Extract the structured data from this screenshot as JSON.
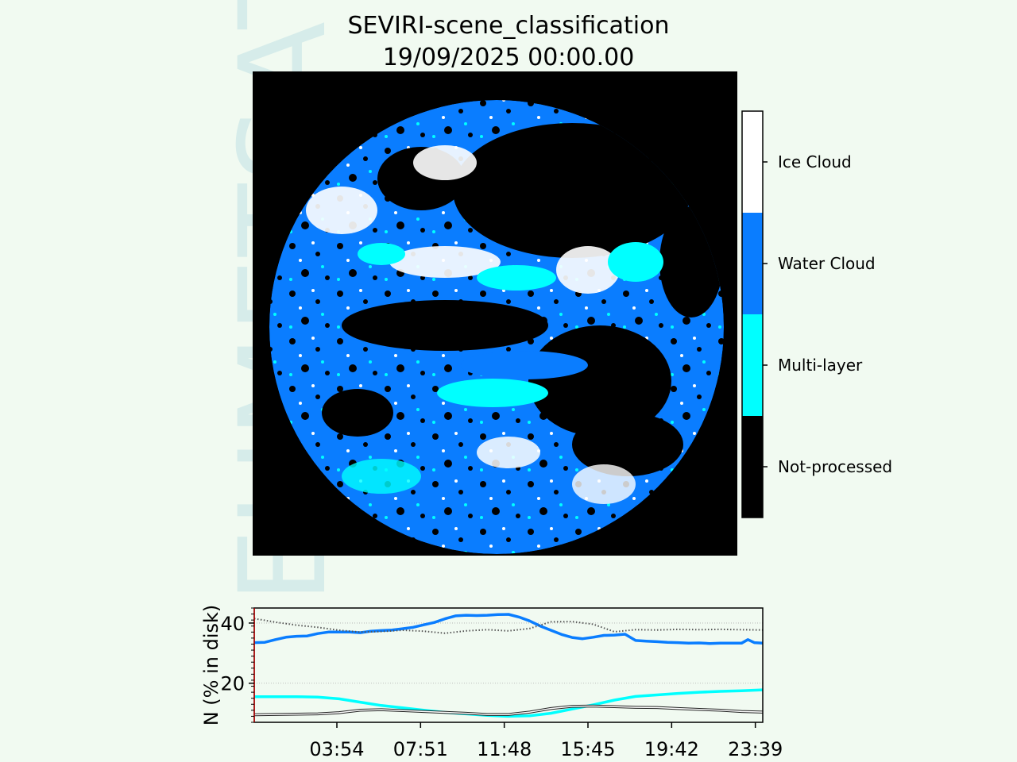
{
  "title": "SEVIRI-scene_classification",
  "timestamp": "19/09/2025 00:00.00",
  "watermark": "EUMETSAT",
  "colors": {
    "background": "#f1faf1",
    "not_processed": "#000000",
    "multi_layer": "#00ffff",
    "water_cloud": "#0a7dff",
    "ice_cloud": "#ffffff",
    "watermark": "#d6ecea"
  },
  "colorbar": {
    "labels": [
      "Ice Cloud",
      "Water Cloud",
      "Multi-layer",
      "Not-processed"
    ]
  },
  "chart_data": {
    "type": "line",
    "ylabel": "N (% in disk)",
    "xticks": [
      "03:54",
      "07:51",
      "11:48",
      "15:45",
      "19:42",
      "23:39"
    ],
    "yticks": [
      20,
      40
    ],
    "xlim": [
      0,
      24
    ],
    "ylim": [
      7,
      45
    ],
    "grid": "horizontal dotted",
    "series": [
      {
        "key": "water",
        "color": "#0a7dff",
        "style": "solid",
        "x": [
          0,
          0.5,
          1.0,
          1.5,
          2.0,
          2.5,
          3.0,
          3.5,
          4.0,
          4.5,
          5.0,
          5.5,
          6.0,
          6.5,
          7.0,
          7.5,
          8.0,
          8.5,
          9.0,
          9.5,
          10.0,
          10.5,
          11.0,
          11.5,
          12.0,
          12.5,
          13.0,
          13.5,
          14.0,
          14.5,
          15.0,
          15.5,
          16.0,
          16.5,
          17.0,
          17.5,
          18.0,
          18.5,
          19.0,
          19.5,
          20.0,
          20.5,
          21.0,
          21.5,
          22.0,
          22.5,
          23.0,
          23.3,
          23.6,
          24.0
        ],
        "values": [
          33.5,
          33.6,
          34.5,
          35.3,
          35.6,
          35.7,
          36.5,
          37.0,
          37.0,
          37.0,
          36.8,
          37.3,
          37.5,
          37.7,
          38.1,
          38.6,
          39.4,
          40.2,
          41.4,
          42.4,
          42.6,
          42.5,
          42.6,
          42.8,
          42.9,
          42.0,
          40.7,
          39.0,
          37.6,
          36.2,
          35.2,
          34.8,
          35.3,
          35.9,
          36.0,
          36.3,
          34.2,
          34.0,
          33.8,
          33.6,
          33.5,
          33.3,
          33.4,
          33.2,
          33.3,
          33.3,
          33.3,
          34.5,
          33.5,
          33.3
        ]
      },
      {
        "key": "multi",
        "color": "#00ffff",
        "style": "solid",
        "x": [
          0,
          1,
          2,
          3,
          4,
          5,
          6,
          7,
          8,
          9,
          10,
          11,
          12,
          13,
          14,
          15,
          16,
          17,
          18,
          19,
          20,
          21,
          22,
          23,
          24
        ],
        "values": [
          15.5,
          15.5,
          15.5,
          15.4,
          14.8,
          13.7,
          12.6,
          11.8,
          11.0,
          10.3,
          9.8,
          9.3,
          9.0,
          9.2,
          10.0,
          11.4,
          12.8,
          14.4,
          15.6,
          16.1,
          16.6,
          17.0,
          17.3,
          17.5,
          17.8
        ]
      },
      {
        "key": "ice",
        "color": "#ffffff",
        "style": "solid-outlined",
        "x": [
          0,
          1,
          2,
          3,
          4,
          5,
          6,
          7,
          8,
          9,
          10,
          11,
          12,
          13,
          14,
          15,
          16,
          17,
          18,
          19,
          20,
          21,
          22,
          23,
          24
        ],
        "values": [
          9.5,
          9.6,
          9.7,
          9.8,
          10.2,
          11.0,
          11.2,
          10.9,
          10.6,
          10.3,
          10.0,
          9.6,
          9.6,
          10.4,
          11.6,
          12.3,
          12.4,
          12.2,
          12.0,
          11.9,
          11.6,
          11.3,
          11.0,
          10.6,
          10.4
        ]
      },
      {
        "key": "black",
        "color": "#555555",
        "style": "dotted",
        "x": [
          0,
          1,
          2,
          3,
          4,
          5,
          6,
          7,
          8,
          9,
          10,
          11,
          12,
          13,
          14,
          15,
          16,
          17,
          18,
          19,
          20,
          21,
          22,
          23,
          24
        ],
        "values": [
          41.5,
          40.3,
          39.3,
          38.6,
          37.6,
          37.0,
          37.2,
          37.6,
          37.3,
          36.6,
          37.4,
          37.8,
          37.4,
          38.2,
          40.4,
          40.5,
          39.6,
          37.1,
          37.8,
          37.7,
          37.9,
          37.8,
          37.9,
          37.8,
          37.7
        ]
      }
    ]
  }
}
